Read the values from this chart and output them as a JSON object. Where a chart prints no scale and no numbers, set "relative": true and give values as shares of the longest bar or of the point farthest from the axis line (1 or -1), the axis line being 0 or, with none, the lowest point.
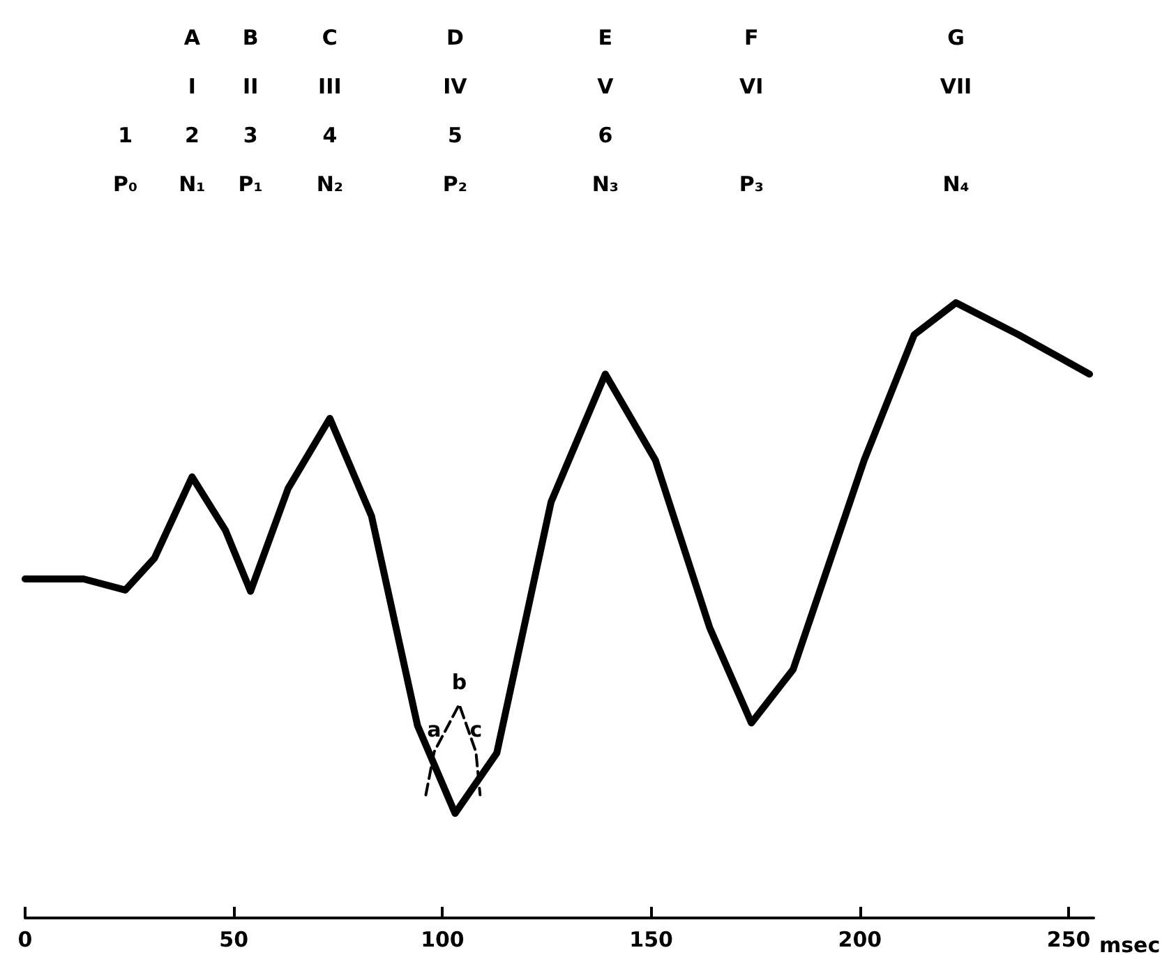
{
  "chart_data": {
    "type": "line",
    "relative": true,
    "xlabel": "msec",
    "xlim": [
      0,
      256
    ],
    "xticks": [
      0,
      50,
      100,
      150,
      200,
      250
    ],
    "grid": false,
    "marker": "none",
    "series": [
      {
        "color": "#000000",
        "line_style": "solid",
        "x": [
          0,
          14,
          24,
          31,
          40,
          48,
          54,
          63,
          73,
          83,
          94,
          103,
          113,
          126,
          139,
          151,
          164,
          174,
          184,
          201,
          213,
          223,
          238,
          255
        ],
        "values": [
          0.551,
          0.551,
          0.533,
          0.585,
          0.717,
          0.63,
          0.531,
          0.698,
          0.812,
          0.653,
          0.313,
          0.17,
          0.268,
          0.676,
          0.884,
          0.744,
          0.472,
          0.317,
          0.404,
          0.744,
          0.948,
          1.0,
          0.948,
          0.884
        ]
      },
      {
        "color": "#000000",
        "line_style": "dashed",
        "x": [
          96,
          98,
          104,
          108,
          109
        ],
        "values": [
          0.2,
          0.27,
          0.347,
          0.27,
          0.2
        ]
      }
    ],
    "annotations": [
      "\n\n1\nP₀",
      "A\nI\n2\nN₁",
      "B\nII\n3\nP₁",
      "C\nIII\n4\nN₂",
      "D\nIV\n5\nP₂",
      "E\nV\n6\nN₃",
      "F\nVI\n\nP₃",
      "G\nVII\n\nN₄",
      {
        "text": "a",
        "x": 98,
        "y": 0.27
      },
      {
        "text": "b",
        "x": 104,
        "y": 0.347
      },
      {
        "text": "c",
        "x": 108,
        "y": 0.27
      }
    ]
  }
}
